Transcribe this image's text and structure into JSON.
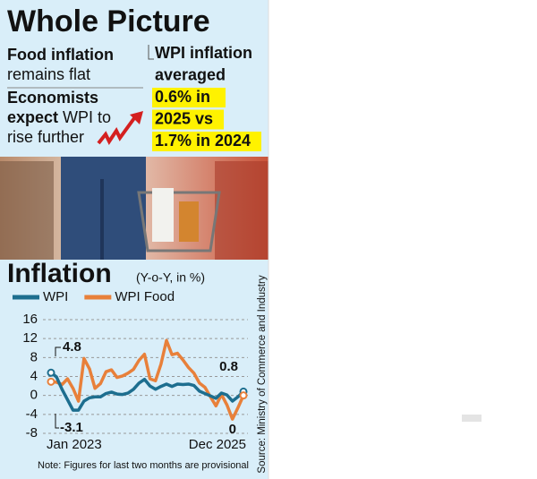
{
  "header": {
    "title": "Whole Picture",
    "left_points": [
      {
        "lines": [
          [
            "Food inflation"
          ],
          [
            "remains flat"
          ]
        ],
        "bold": [
          [
            true
          ],
          [
            false
          ]
        ]
      },
      {
        "lines": [
          [
            "Economists"
          ],
          [
            "expect",
            " WPI to"
          ],
          [
            "rise further"
          ]
        ],
        "bold": [
          [
            true
          ],
          [
            true,
            false
          ],
          [
            false
          ]
        ]
      }
    ],
    "right_lines": [
      "WPI inflation",
      "averaged",
      "0.6% in",
      "2025 vs",
      "1.7% in 2024"
    ]
  },
  "chart_data": {
    "type": "line",
    "title": "Inflation",
    "subtitle": "(Y-o-Y, in %)",
    "categories": [
      "Jan 2023",
      null,
      null,
      null,
      null,
      null,
      null,
      null,
      null,
      null,
      null,
      null,
      null,
      null,
      null,
      null,
      null,
      null,
      null,
      null,
      null,
      null,
      null,
      null,
      null,
      null,
      null,
      null,
      null,
      null,
      null,
      null,
      null,
      null,
      null,
      "Dec 2025"
    ],
    "series": [
      {
        "name": "WPI",
        "color": "#1d6e8f",
        "values": [
          4.8,
          3.9,
          1.3,
          -0.9,
          -3.1,
          -3.1,
          -1.2,
          -0.5,
          -0.3,
          -0.3,
          0.4,
          0.7,
          0.3,
          0.2,
          0.5,
          1.3,
          2.6,
          3.4,
          2.0,
          1.3,
          1.9,
          2.4,
          1.9,
          2.4,
          2.3,
          2.4,
          2.1,
          0.9,
          0.4,
          -0.1,
          -0.6,
          0.5,
          0.1,
          -1.2,
          -0.3,
          0.8
        ]
      },
      {
        "name": "WPI Food",
        "color": "#e8803a",
        "values": [
          2.9,
          2.8,
          2.3,
          3.5,
          1.5,
          -1.2,
          7.8,
          5.6,
          1.5,
          2.5,
          5.0,
          5.4,
          3.8,
          4.1,
          4.7,
          5.5,
          7.4,
          8.7,
          3.5,
          3.1,
          6.6,
          11.6,
          8.6,
          8.9,
          7.5,
          5.9,
          4.7,
          2.6,
          1.7,
          -0.3,
          -2.2,
          0.2,
          -2.0,
          -5.0,
          -2.6,
          0
        ]
      }
    ],
    "ylim": [
      -8,
      16
    ],
    "yticks": [
      -8,
      -4,
      0,
      4,
      8,
      12,
      16
    ],
    "grid": true,
    "annotations": [
      "4.8",
      "-3.1",
      "0.8",
      "0"
    ],
    "note": "Note: Figures for last two months are provisional",
    "source": "Source: Ministry of Commerce and Industry"
  }
}
